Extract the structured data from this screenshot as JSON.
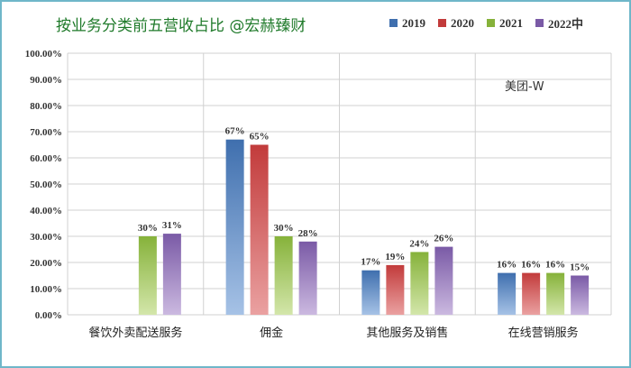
{
  "title": "按业务分类前五营收占比  @宏赫臻财",
  "note": "美团-W",
  "colors": {
    "s2019": [
      "#3f6fae",
      "#a6c2e6"
    ],
    "s2020": [
      "#c23b3b",
      "#eaa1a1"
    ],
    "s2021": [
      "#86b23a",
      "#d3e6aa"
    ],
    "s2022": [
      "#7a5aa6",
      "#cbb9e0"
    ],
    "grid": "#d0d0d0",
    "axis_text": "#333333"
  },
  "chart_data": {
    "type": "bar",
    "title": "按业务分类前五营收占比  @宏赫臻财",
    "categories": [
      "餐饮外卖配送服务",
      "佣金",
      "其他服务及销售",
      "在线营销服务"
    ],
    "ytick_labels": [
      "0.00%",
      "10.00%",
      "20.00%",
      "30.00%",
      "40.00%",
      "50.00%",
      "60.00%",
      "70.00%",
      "80.00%",
      "90.00%",
      "100.00%"
    ],
    "ylim": [
      0,
      100
    ],
    "grid": true,
    "legend_position": "top-right",
    "series": [
      {
        "name": "2019",
        "values": [
          null,
          67,
          17,
          16
        ],
        "labels": [
          "",
          "67%",
          "17%",
          "16%"
        ]
      },
      {
        "name": "2020",
        "values": [
          null,
          65,
          19,
          16
        ],
        "labels": [
          "",
          "65%",
          "19%",
          "16%"
        ]
      },
      {
        "name": "2021",
        "values": [
          30,
          30,
          24,
          16
        ],
        "labels": [
          "30%",
          "30%",
          "24%",
          "16%"
        ]
      },
      {
        "name": "2022中",
        "values": [
          31,
          28,
          26,
          15
        ],
        "labels": [
          "31%",
          "28%",
          "26%",
          "15%"
        ]
      }
    ]
  }
}
